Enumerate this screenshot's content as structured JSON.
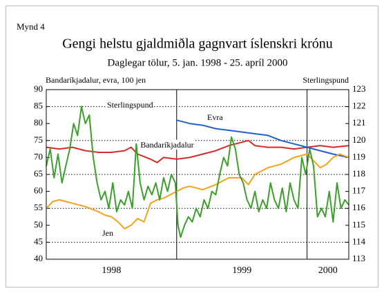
{
  "chart_data": {
    "type": "line",
    "figure_label": "Mynd 4",
    "title": "Gengi helstu gjaldmiðla gagnvart íslenskri krónu",
    "subtitle": "Daglegar tölur, 5. jan. 1998 - 25. apríl 2000",
    "ylabel": "Bandaríkjadalur, evra, 100 jen",
    "y2label": "Sterlingspund",
    "xlim": [
      1998,
      2000.32
    ],
    "xticks": [
      1999,
      2000
    ],
    "year_labels": [
      "1998",
      "1999",
      "2000"
    ],
    "ylim": [
      40,
      90
    ],
    "yticks": [
      40,
      45,
      50,
      55,
      60,
      65,
      70,
      75,
      80,
      85,
      90
    ],
    "y2lim": [
      113,
      123
    ],
    "y2ticks": [
      113,
      114,
      115,
      116,
      117,
      118,
      119,
      120,
      121,
      122,
      123
    ],
    "grid": true,
    "annotations": [
      "Sterlingspund",
      "Evra",
      "Bandaríkjadalur",
      "Jen"
    ],
    "series": [
      {
        "name": "Bandaríkjadalur",
        "color": "#d62a2a",
        "x": [
          1998.0,
          1998.1,
          1998.2,
          1998.3,
          1998.4,
          1998.5,
          1998.6,
          1998.65,
          1998.7,
          1998.8,
          1998.85,
          1998.9,
          1999.0,
          1999.1,
          1999.2,
          1999.3,
          1999.4,
          1999.5,
          1999.55,
          1999.6,
          1999.7,
          1999.8,
          1999.9,
          2000.0,
          2000.1,
          2000.2,
          2000.32
        ],
        "values": [
          73,
          72.5,
          73,
          72,
          71.5,
          71.5,
          72,
          73,
          71,
          69.5,
          68.5,
          70,
          69.5,
          70,
          71,
          72,
          73.5,
          74.5,
          75,
          73.5,
          73,
          73,
          72.5,
          73,
          73.5,
          73,
          73.5
        ]
      },
      {
        "name": "Evra",
        "color": "#1f5fd1",
        "x": [
          1999.0,
          1999.05,
          1999.1,
          1999.2,
          1999.3,
          1999.4,
          1999.5,
          1999.6,
          1999.7,
          1999.8,
          1999.9,
          2000.0,
          2000.1,
          2000.2,
          2000.32
        ],
        "values": [
          81,
          80.5,
          80,
          79.5,
          78.5,
          78,
          77.5,
          77,
          76.5,
          75,
          74,
          73,
          72,
          71,
          70
        ]
      },
      {
        "name": "Jen",
        "color": "#f5a21b",
        "x": [
          1998.0,
          1998.05,
          1998.1,
          1998.15,
          1998.2,
          1998.3,
          1998.4,
          1998.45,
          1998.5,
          1998.55,
          1998.6,
          1998.65,
          1998.7,
          1998.75,
          1998.8,
          1998.85,
          1998.9,
          1998.95,
          1999.0,
          1999.05,
          1999.1,
          1999.2,
          1999.3,
          1999.4,
          1999.5,
          1999.55,
          1999.6,
          1999.7,
          1999.75,
          1999.8,
          1999.85,
          1999.9,
          2000.0,
          2000.05,
          2000.1,
          2000.15,
          2000.2,
          2000.25,
          2000.32
        ],
        "values": [
          55,
          57,
          57.5,
          57,
          56.5,
          55.5,
          54,
          53,
          52.5,
          51,
          49,
          50,
          52,
          51,
          56.5,
          57.5,
          58,
          59,
          60,
          61,
          61.5,
          60.5,
          62,
          64,
          64,
          62,
          65,
          67,
          67.5,
          68,
          69,
          70,
          71,
          69,
          67,
          68,
          70,
          71,
          70
        ]
      },
      {
        "name": "Sterlingspund",
        "color": "#3aa02a",
        "axis": "y2",
        "x": [
          1998.0,
          1998.03,
          1998.06,
          1998.09,
          1998.12,
          1998.15,
          1998.18,
          1998.21,
          1998.24,
          1998.27,
          1998.3,
          1998.33,
          1998.36,
          1998.39,
          1998.42,
          1998.45,
          1998.48,
          1998.51,
          1998.54,
          1998.57,
          1998.6,
          1998.63,
          1998.66,
          1998.69,
          1998.72,
          1998.75,
          1998.78,
          1998.81,
          1998.84,
          1998.87,
          1998.9,
          1998.93,
          1998.96,
          1998.99,
          1999.01,
          1999.03,
          1999.06,
          1999.09,
          1999.12,
          1999.15,
          1999.18,
          1999.21,
          1999.24,
          1999.27,
          1999.3,
          1999.33,
          1999.36,
          1999.39,
          1999.42,
          1999.45,
          1999.48,
          1999.51,
          1999.54,
          1999.57,
          1999.6,
          1999.63,
          1999.66,
          1999.69,
          1999.72,
          1999.75,
          1999.78,
          1999.81,
          1999.84,
          1999.87,
          1999.9,
          1999.93,
          1999.96,
          1999.99,
          2000.02,
          2000.05,
          2000.08,
          2000.11,
          2000.14,
          2000.17,
          2000.2,
          2000.23,
          2000.26,
          2000.29,
          2000.32
        ],
        "values": [
          118.5,
          119.5,
          117.8,
          119.2,
          117.5,
          118.5,
          119.5,
          121.0,
          120.3,
          122.0,
          121.0,
          121.5,
          119.0,
          117.5,
          116.5,
          117.0,
          116.0,
          117.5,
          115.8,
          116.5,
          116.2,
          117.0,
          116.0,
          119.8,
          117.5,
          116.5,
          117.3,
          116.8,
          117.5,
          116.5,
          117.8,
          117.0,
          118.0,
          117.5,
          115.0,
          114.3,
          115.0,
          115.5,
          115.2,
          116.0,
          115.5,
          116.5,
          116.0,
          117.0,
          116.8,
          118.0,
          119.0,
          118.5,
          120.2,
          119.5,
          118.0,
          117.5,
          116.5,
          116.0,
          117.0,
          115.8,
          116.5,
          116.0,
          117.5,
          116.5,
          116.0,
          117.2,
          115.8,
          117.5,
          116.5,
          116.0,
          119.0,
          118.0,
          119.5,
          118.5,
          115.5,
          116.0,
          115.5,
          117.0,
          115.2,
          117.5,
          116.0,
          116.5,
          116.2
        ]
      }
    ]
  }
}
